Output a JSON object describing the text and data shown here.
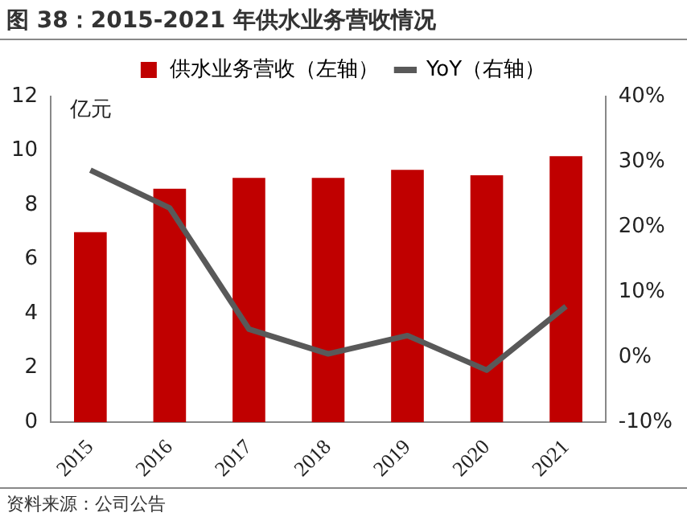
{
  "chart_data": {
    "type": "bar",
    "title": "图 38：2015-2021 年供水业务营收情况",
    "ylabel": "亿元",
    "categories": [
      "2015",
      "2016",
      "2017",
      "2018",
      "2019",
      "2020",
      "2021"
    ],
    "series": [
      {
        "name": "供水业务营收（左轴）",
        "color": "#c00000",
        "values": [
          7.0,
          8.6,
          9.0,
          9.0,
          9.3,
          9.1,
          9.8
        ]
      },
      {
        "name": "YoY（右轴）",
        "type": "line",
        "axis": "y2",
        "color": "#595959",
        "values": [
          28.7,
          22.9,
          4.3,
          0.5,
          3.3,
          -2.0,
          7.8
        ]
      }
    ],
    "ylim": [
      0,
      12
    ],
    "yticks": [
      0,
      2,
      4,
      6,
      8,
      10,
      12
    ],
    "y2lim": [
      -10,
      40
    ],
    "y2ticks": [
      {
        "value": -10,
        "label": "-10%"
      },
      {
        "value": 0,
        "label": "0%"
      },
      {
        "value": 10,
        "label": "10%"
      },
      {
        "value": 20,
        "label": "20%"
      },
      {
        "value": 30,
        "label": "30%"
      },
      {
        "value": 40,
        "label": "40%"
      }
    ],
    "grid": false,
    "legend": "top",
    "marker": "none",
    "line_style": "solid",
    "annotations": [
      "资料来源：公司公告"
    ]
  }
}
